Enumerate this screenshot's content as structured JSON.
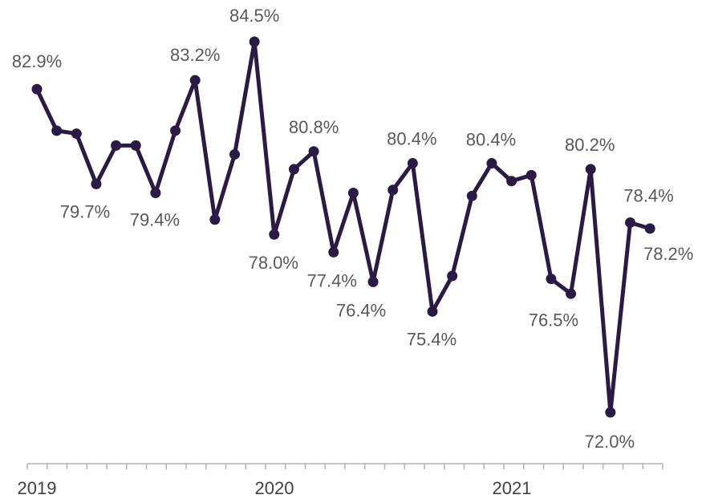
{
  "chart_data": {
    "type": "line",
    "title": "",
    "xlabel": "",
    "ylabel": "",
    "x_tick_labels": [
      "2019",
      "2020",
      "2021"
    ],
    "color": "#2b1a45",
    "grid": false,
    "legend": "none",
    "values": [
      82.9,
      81.5,
      81.4,
      79.7,
      81.0,
      81.0,
      79.4,
      81.5,
      83.2,
      78.5,
      80.7,
      84.5,
      78.0,
      80.2,
      80.8,
      77.4,
      79.4,
      76.4,
      79.5,
      80.4,
      75.4,
      76.6,
      79.3,
      80.4,
      79.8,
      80.0,
      76.5,
      76.0,
      80.2,
      72.0,
      78.4,
      78.2
    ],
    "data_labels": [
      {
        "index": 0,
        "text": "82.9%"
      },
      {
        "index": 3,
        "text": "79.7%"
      },
      {
        "index": 6,
        "text": "79.4%"
      },
      {
        "index": 8,
        "text": "83.2%"
      },
      {
        "index": 11,
        "text": "84.5%"
      },
      {
        "index": 12,
        "text": "78.0%"
      },
      {
        "index": 14,
        "text": "80.8%"
      },
      {
        "index": 15,
        "text": "77.4%"
      },
      {
        "index": 17,
        "text": "76.4%"
      },
      {
        "index": 19,
        "text": "80.4%"
      },
      {
        "index": 20,
        "text": "75.4%"
      },
      {
        "index": 23,
        "text": "80.4%"
      },
      {
        "index": 26,
        "text": "76.5%"
      },
      {
        "index": 28,
        "text": "80.2%"
      },
      {
        "index": 29,
        "text": "72.0%"
      },
      {
        "index": 30,
        "text": "78.4%"
      },
      {
        "index": 31,
        "text": "78.2%"
      }
    ]
  }
}
